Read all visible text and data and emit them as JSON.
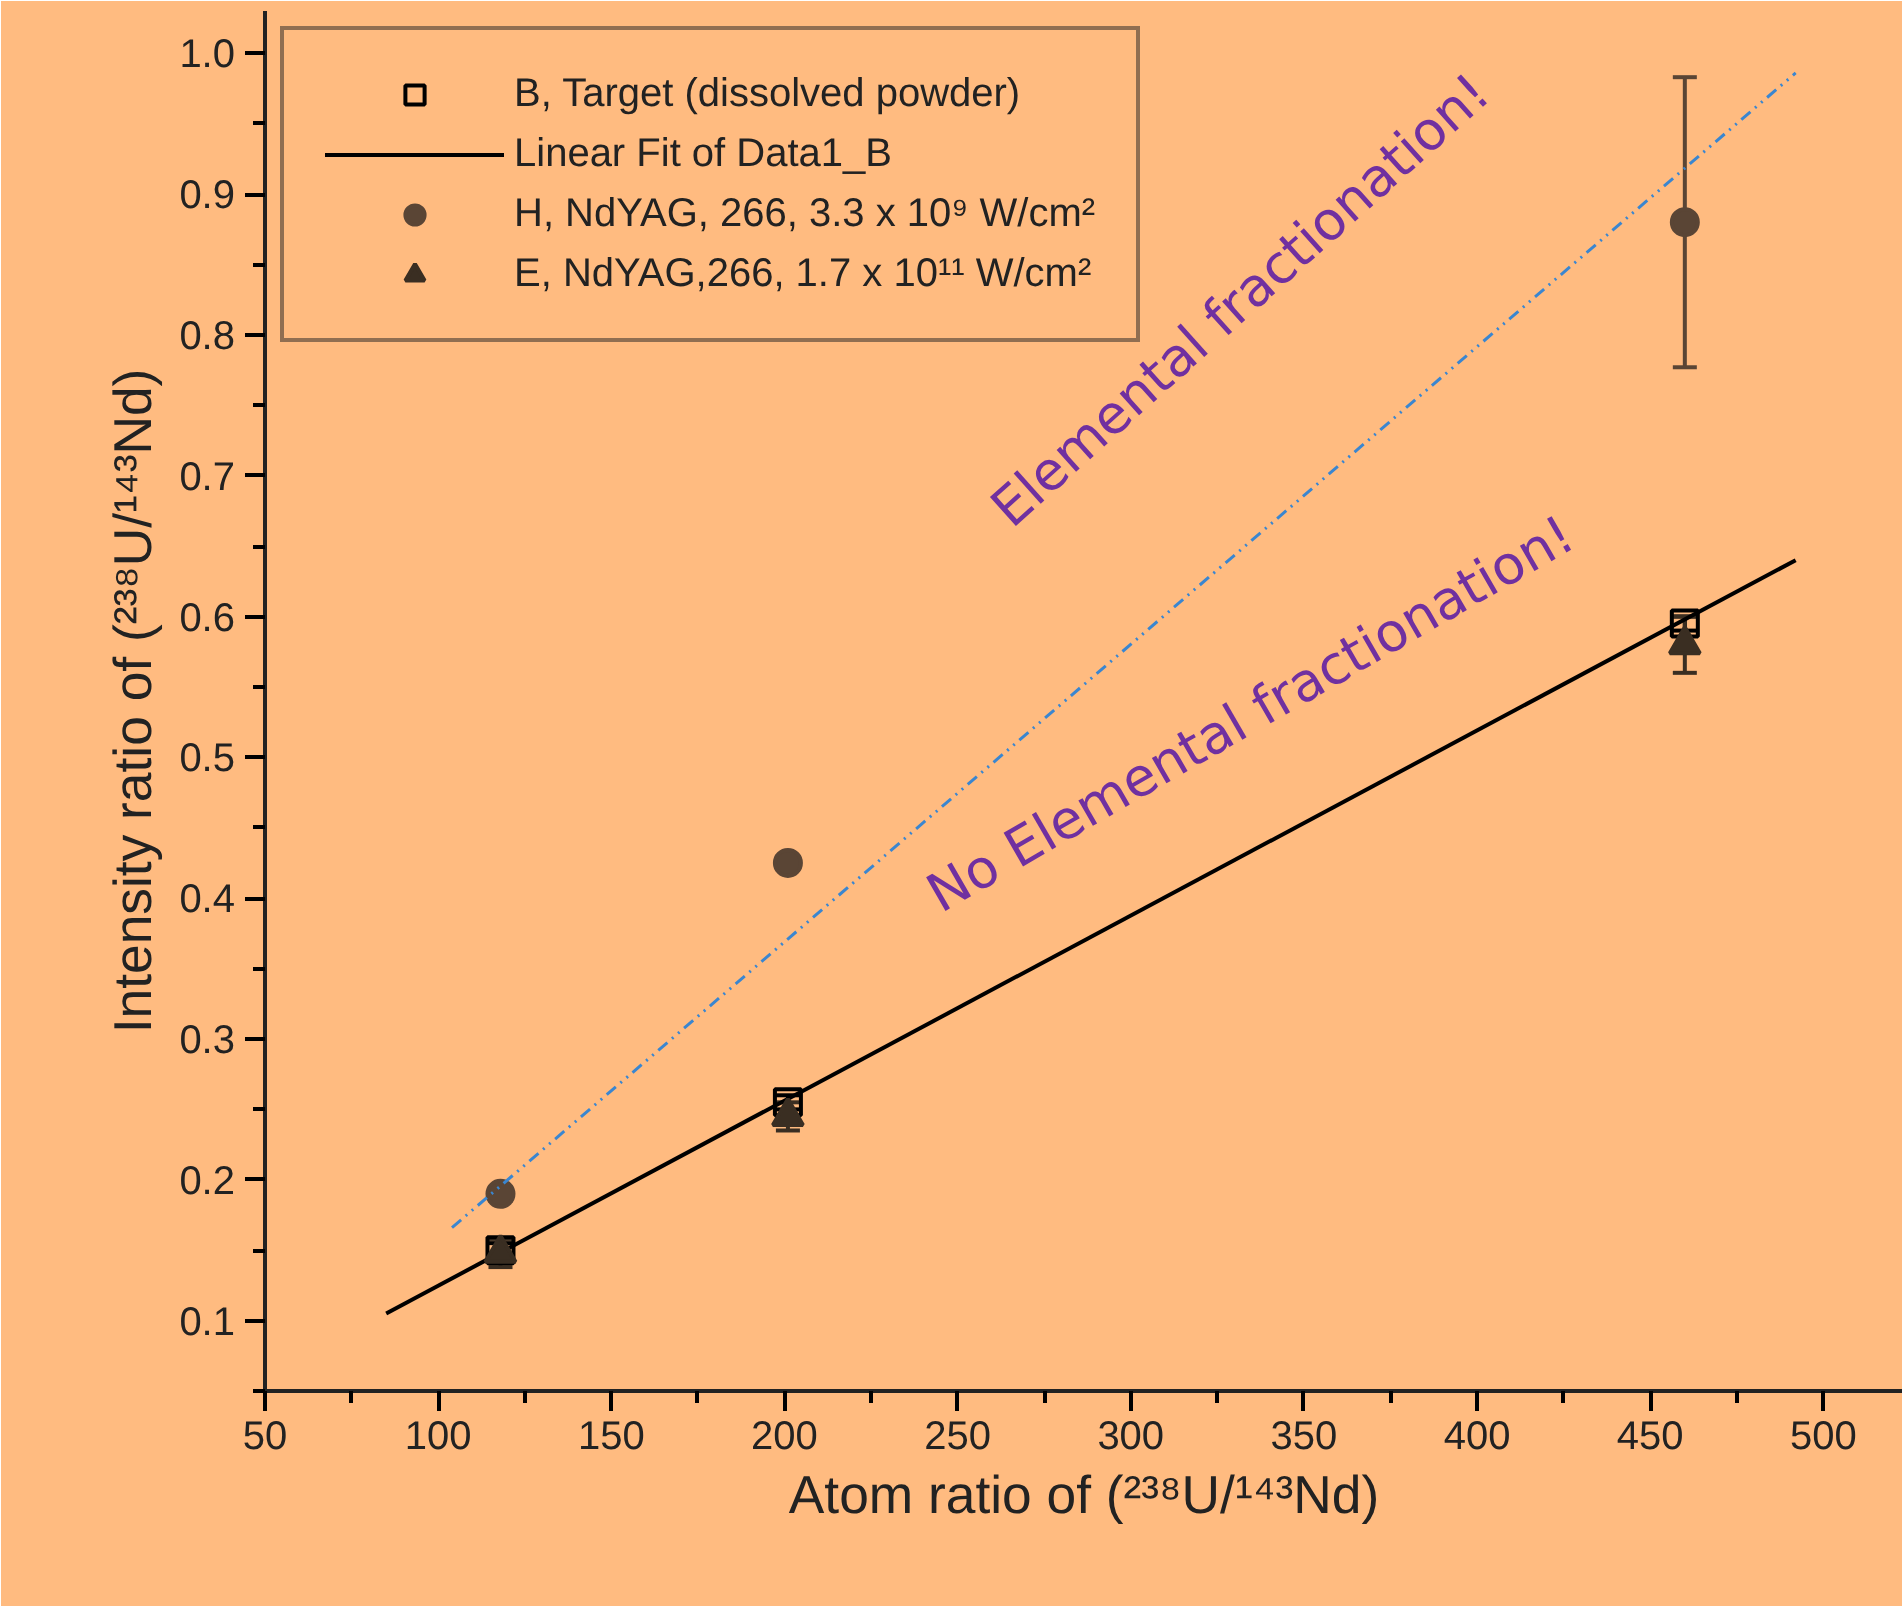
{
  "chart_data": {
    "type": "scatter",
    "xlabel": "Atom ratio of (²³⁸U/¹⁴³Nd)",
    "ylabel": "Intensity ratio of (²³⁸U/¹⁴³Nd)",
    "xlim": [
      50,
      523
    ],
    "ylim": [
      0.05,
      1.03
    ],
    "xticks": [
      50,
      100,
      150,
      200,
      250,
      300,
      350,
      400,
      450,
      500
    ],
    "yticks": [
      0.1,
      0.2,
      0.3,
      0.4,
      0.5,
      0.6,
      0.7,
      0.8,
      0.9,
      {
        "value": 1.0,
        "label": "1.0"
      }
    ],
    "grid": false,
    "legend": "top left",
    "series": [
      {
        "name": "B, Target (dissolved powder)",
        "marker": "square",
        "color": "#000000",
        "x": [
          118,
          201,
          460
        ],
        "values": [
          0.15,
          0.255,
          0.595
        ],
        "errors": [
          0.005,
          0.005,
          0.005
        ]
      },
      {
        "name": "Linear Fit of Data1_B",
        "type": "line",
        "line_style": "solid",
        "color": "#000000",
        "x": [
          85,
          492
        ],
        "values": [
          0.105,
          0.64
        ]
      },
      {
        "name": "H, NdYAG, 266, 3.3 x 10⁹ W/cm²",
        "marker": "circle",
        "color": "#5a4535",
        "x": [
          118,
          201,
          460
        ],
        "values": [
          0.19,
          0.425,
          0.88
        ],
        "errors": [
          0.005,
          0.005,
          0.103
        ]
      },
      {
        "name": "E, NdYAG,266, 1.7 x 10¹¹ W/cm²",
        "marker": "triangle",
        "color": "#3a2e22",
        "x": [
          118,
          201,
          460
        ],
        "values": [
          0.148,
          0.245,
          0.58
        ],
        "errors": [
          0.01,
          0.01,
          0.02
        ]
      },
      {
        "type": "line",
        "line_style": "dashed",
        "color": "#3a86d0",
        "x": [
          104,
          492
        ],
        "values": [
          0.166,
          0.986
        ]
      }
    ],
    "annotations": [
      "Elemental fractionation!",
      "No Elemental fractionation!"
    ]
  }
}
